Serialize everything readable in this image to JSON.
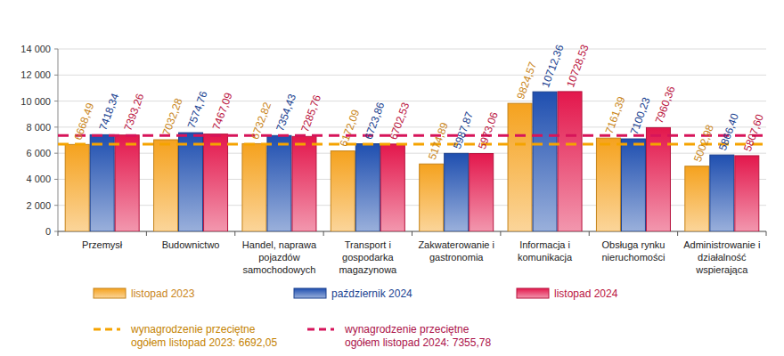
{
  "chart_data": {
    "type": "bar",
    "categories": [
      "Przemysł",
      "Budownictwo",
      "Handel, naprawa pojazdów samochodowych",
      "Transport i gospodarka magazynowa",
      "Zakwaterowanie i gastronomia",
      "Informacja i komunikacja",
      "Obsługa rynku nieruchomości",
      "Administrowanie i działalność wspierająca"
    ],
    "series": [
      {
        "name": "listopad 2023",
        "color": "#f5a21e",
        "values": [
          6668.49,
          7032.28,
          6732.82,
          6172.09,
          5174.89,
          9824.57,
          7161.39,
          5002.98
        ],
        "value_labels": [
          "6668,49",
          "7032,28",
          "6732,82",
          "6172,09",
          "5174,89",
          "9824,57",
          "7161,39",
          "5002,98"
        ]
      },
      {
        "name": "październik 2024",
        "color": "#1f4fb0",
        "values": [
          7418.34,
          7574.76,
          7354.43,
          6723.86,
          5987.87,
          10712.36,
          7100.23,
          5866.4
        ],
        "value_labels": [
          "7418,34",
          "7574,76",
          "7354,43",
          "6723,86",
          "5987,87",
          "10712,36",
          "7100,23",
          "5866,40"
        ]
      },
      {
        "name": "listopad 2024",
        "color": "#e3174c",
        "values": [
          7393.26,
          7467.09,
          7285.76,
          6702.53,
          5973.06,
          10728.53,
          7960.36,
          5807.6
        ],
        "value_labels": [
          "7393,26",
          "7467,09",
          "7285,76",
          "6702,53",
          "5973,06",
          "10728,53",
          "7960,36",
          "5807,60"
        ]
      }
    ],
    "reference_lines": [
      {
        "name": "wynagrodzenie przeciętne ogółem listopad 2023: 6692,05",
        "value": 6692.05,
        "color": "#f5a300",
        "line_style": "dashed"
      },
      {
        "name": "wynagrodzenie przeciętne ogółem listopad 2024: 7355,78",
        "value": 7355.78,
        "color": "#d6145a",
        "line_style": "dashed"
      }
    ],
    "ylim": [
      0,
      14000
    ],
    "yticks": [
      0,
      {
        "value": 2000,
        "label": "2 000"
      },
      {
        "value": 4000,
        "label": "4 000"
      },
      {
        "value": 6000,
        "label": "6 000"
      },
      {
        "value": 8000,
        "label": "8 000"
      },
      {
        "value": 10000,
        "label": "10 000"
      },
      {
        "value": 12000,
        "label": "12 000"
      },
      {
        "value": 14000,
        "label": "14 000"
      }
    ],
    "grid": true,
    "data_labels": true,
    "legend": "bottom"
  }
}
